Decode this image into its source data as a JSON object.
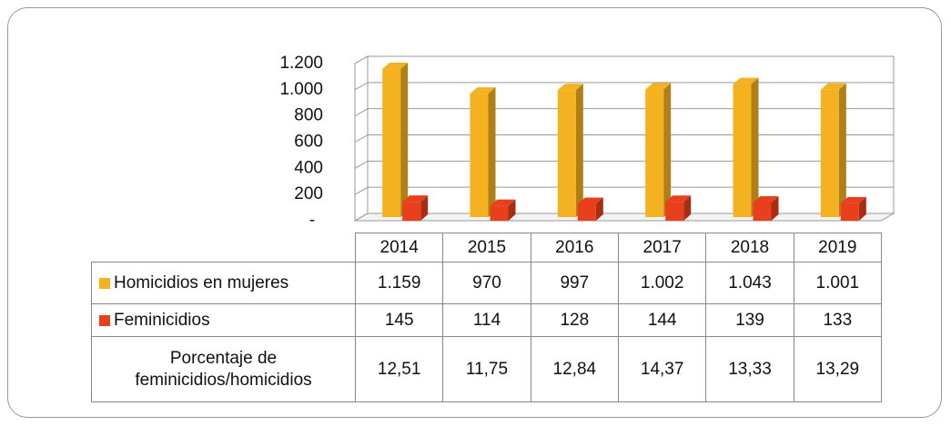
{
  "chart_data": {
    "type": "bar3d",
    "categories": [
      "2014",
      "2015",
      "2016",
      "2017",
      "2018",
      "2019"
    ],
    "series": [
      {
        "name": "Homicidios en mujeres",
        "color": "#f4b120",
        "values": [
          1159,
          970,
          997,
          1002,
          1043,
          1001
        ],
        "value_labels": [
          "1.159",
          "970",
          "997",
          "1.002",
          "1.043",
          "1.001"
        ]
      },
      {
        "name": "Feminicidios",
        "color": "#e8401c",
        "values": [
          145,
          114,
          128,
          144,
          139,
          133
        ]
      }
    ],
    "table_row": {
      "name": "Porcentaje de feminicidios/homicidios",
      "values": [
        12.51,
        11.75,
        12.84,
        14.37,
        13.33,
        13.29
      ],
      "value_labels": [
        "12,51",
        "11,75",
        "12,84",
        "14,37",
        "13,33",
        "13,29"
      ]
    },
    "ylim": [
      0,
      1200
    ],
    "yticks": [
      {
        "value": 0,
        "label": "-"
      },
      200,
      400,
      600,
      800,
      {
        "value": 1000,
        "label": "1.000"
      },
      {
        "value": 1200,
        "label": "1.200"
      }
    ],
    "grid": true
  }
}
